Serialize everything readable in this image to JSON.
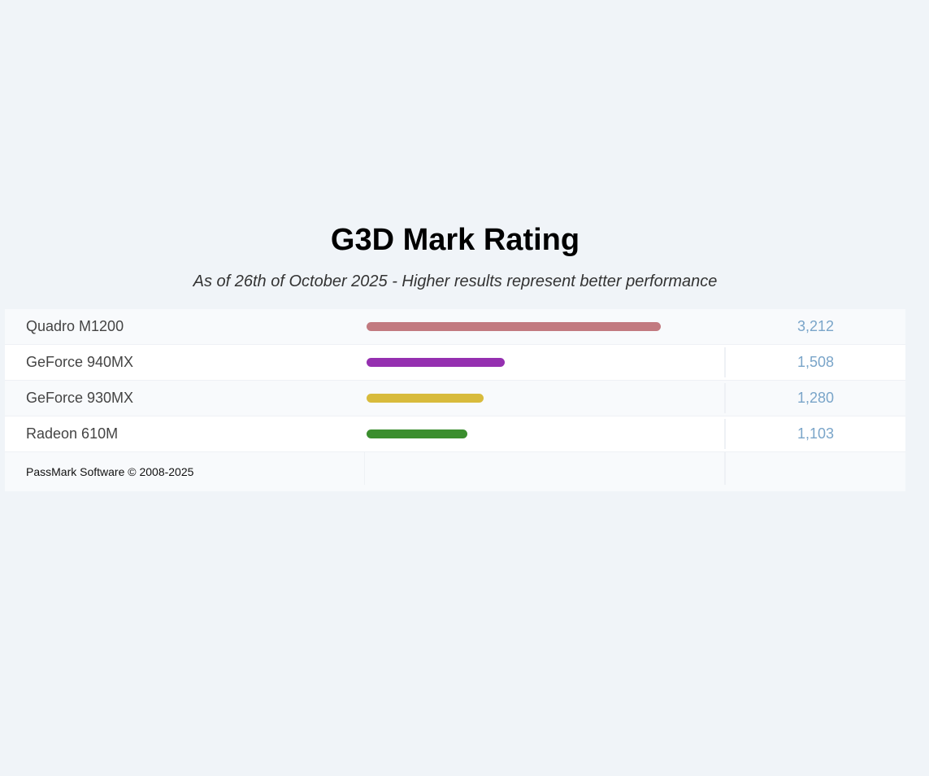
{
  "chart_data": {
    "type": "bar",
    "title": "G3D Mark Rating",
    "subtitle": "As of 26th of October 2025 - Higher results represent better performance",
    "orientation": "horizontal",
    "categories": [
      "Quadro M1200",
      "GeForce 940MX",
      "GeForce 930MX",
      "Radeon 610M"
    ],
    "values": [
      3212,
      1508,
      1280,
      1103
    ],
    "value_labels": [
      "3,212",
      "1,508",
      "1,280",
      "1,103"
    ],
    "colors": [
      "#c27a80",
      "#9530b0",
      "#d8bb3c",
      "#3b8e2e"
    ],
    "xlim": [
      0,
      3900
    ]
  },
  "footer": {
    "credit": "PassMark Software © 2008-2025"
  }
}
